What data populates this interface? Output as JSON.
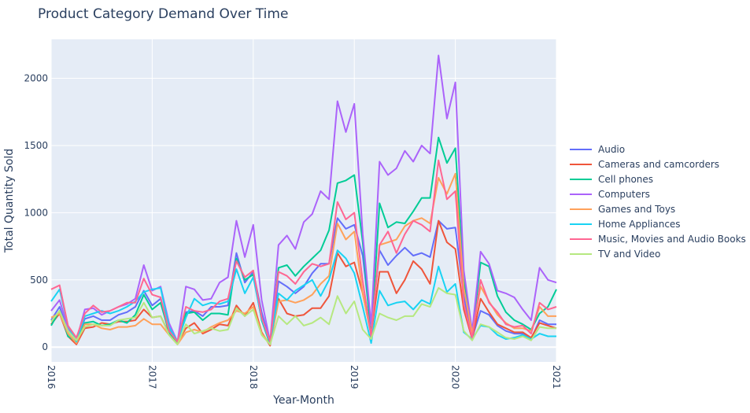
{
  "chart_data": {
    "type": "line",
    "title": "Product Category Demand Over Time",
    "xlabel": "Year-Month",
    "ylabel": "Total Quantity Sold",
    "x_start": "2016-01",
    "x_ticks": [
      "2016",
      "2017",
      "2018",
      "2019",
      "2020",
      "2021"
    ],
    "y_ticks": [
      "0",
      "500",
      "1000",
      "1500",
      "2000"
    ],
    "ylim": [
      -110,
      2290
    ],
    "grid": true,
    "legend_position": "right",
    "series": [
      {
        "name": "Audio",
        "color": "#636efa",
        "values": [
          200,
          300,
          120,
          50,
          210,
          230,
          200,
          200,
          240,
          260,
          300,
          420,
          310,
          360,
          130,
          30,
          260,
          270,
          230,
          300,
          300,
          310,
          700,
          480,
          560,
          260,
          30,
          490,
          450,
          400,
          450,
          550,
          620,
          620,
          960,
          880,
          910,
          680,
          130,
          720,
          610,
          680,
          740,
          680,
          700,
          670,
          940,
          880,
          890,
          380,
          70,
          270,
          240,
          160,
          120,
          100,
          100,
          60,
          200,
          170,
          170
        ]
      },
      {
        "name": "Cameras and camcorders",
        "color": "#ef553b",
        "values": [
          170,
          250,
          80,
          20,
          140,
          150,
          180,
          170,
          190,
          190,
          200,
          280,
          220,
          230,
          100,
          30,
          140,
          180,
          100,
          130,
          170,
          160,
          310,
          230,
          330,
          110,
          10,
          360,
          250,
          230,
          240,
          290,
          290,
          380,
          700,
          600,
          630,
          400,
          90,
          560,
          560,
          400,
          500,
          640,
          580,
          470,
          940,
          780,
          730,
          280,
          60,
          360,
          260,
          170,
          140,
          110,
          110,
          70,
          180,
          160,
          140
        ]
      },
      {
        "name": "Cell phones",
        "color": "#00cc96",
        "values": [
          160,
          270,
          80,
          40,
          180,
          190,
          160,
          170,
          200,
          180,
          240,
          390,
          280,
          330,
          110,
          30,
          250,
          260,
          200,
          250,
          250,
          240,
          660,
          500,
          540,
          200,
          20,
          590,
          610,
          530,
          600,
          660,
          720,
          870,
          1220,
          1240,
          1280,
          780,
          70,
          1070,
          890,
          930,
          920,
          1010,
          1110,
          1110,
          1560,
          1370,
          1480,
          500,
          90,
          630,
          600,
          380,
          260,
          200,
          170,
          130,
          250,
          300,
          430
        ]
      },
      {
        "name": "Computers",
        "color": "#ab63fa",
        "values": [
          270,
          350,
          140,
          50,
          280,
          290,
          240,
          270,
          300,
          320,
          360,
          610,
          420,
          450,
          180,
          40,
          450,
          430,
          350,
          360,
          480,
          520,
          940,
          670,
          910,
          350,
          40,
          760,
          830,
          730,
          930,
          990,
          1160,
          1100,
          1830,
          1600,
          1810,
          840,
          160,
          1380,
          1280,
          1330,
          1460,
          1380,
          1500,
          1440,
          2170,
          1700,
          1970,
          570,
          120,
          710,
          620,
          420,
          400,
          370,
          280,
          200,
          590,
          500,
          480
        ]
      },
      {
        "name": "Games and Toys",
        "color": "#ffa15a",
        "values": [
          220,
          250,
          100,
          30,
          170,
          170,
          140,
          130,
          150,
          150,
          160,
          210,
          170,
          170,
          90,
          20,
          110,
          130,
          110,
          150,
          180,
          200,
          270,
          250,
          300,
          100,
          20,
          340,
          350,
          330,
          350,
          390,
          470,
          530,
          920,
          800,
          860,
          400,
          90,
          760,
          780,
          800,
          900,
          940,
          960,
          920,
          1260,
          1140,
          1290,
          440,
          100,
          450,
          340,
          240,
          180,
          140,
          140,
          120,
          300,
          230,
          230
        ]
      },
      {
        "name": "Home Appliances",
        "color": "#19d3f3",
        "values": [
          340,
          430,
          160,
          40,
          230,
          250,
          270,
          250,
          270,
          300,
          340,
          410,
          430,
          440,
          150,
          40,
          220,
          360,
          310,
          330,
          320,
          340,
          580,
          400,
          520,
          210,
          30,
          400,
          350,
          420,
          460,
          500,
          380,
          500,
          720,
          660,
          550,
          300,
          30,
          420,
          310,
          330,
          340,
          280,
          350,
          320,
          600,
          410,
          470,
          110,
          60,
          160,
          150,
          90,
          60,
          70,
          90,
          60,
          100,
          80,
          80
        ]
      },
      {
        "name": "Music, Movies and Audio Books",
        "color": "#ff6692",
        "values": [
          430,
          460,
          160,
          70,
          250,
          310,
          260,
          270,
          300,
          330,
          330,
          510,
          390,
          370,
          120,
          40,
          300,
          270,
          260,
          280,
          340,
          360,
          640,
          520,
          570,
          220,
          40,
          560,
          530,
          470,
          560,
          620,
          600,
          620,
          1080,
          950,
          1000,
          490,
          80,
          760,
          860,
          700,
          840,
          940,
          910,
          860,
          1390,
          1100,
          1160,
          320,
          70,
          500,
          330,
          260,
          170,
          150,
          160,
          100,
          330,
          280,
          300
        ]
      },
      {
        "name": "TV and Video",
        "color": "#b6e880",
        "values": [
          190,
          270,
          120,
          50,
          150,
          170,
          160,
          160,
          200,
          210,
          220,
          330,
          220,
          230,
          90,
          20,
          170,
          100,
          120,
          140,
          120,
          130,
          290,
          230,
          280,
          90,
          20,
          230,
          170,
          230,
          160,
          180,
          220,
          170,
          380,
          250,
          340,
          130,
          60,
          250,
          220,
          200,
          230,
          230,
          320,
          300,
          440,
          400,
          390,
          120,
          50,
          170,
          150,
          110,
          70,
          60,
          80,
          50,
          150,
          140,
          140
        ]
      }
    ]
  }
}
